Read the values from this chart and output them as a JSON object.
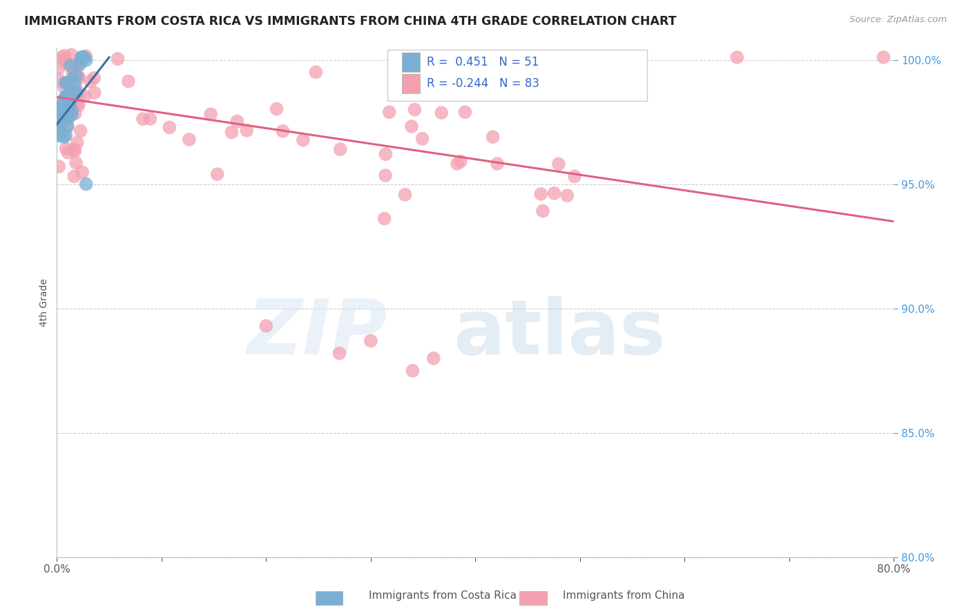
{
  "title": "IMMIGRANTS FROM COSTA RICA VS IMMIGRANTS FROM CHINA 4TH GRADE CORRELATION CHART",
  "source": "Source: ZipAtlas.com",
  "ylabel": "4th Grade",
  "x_min": 0.0,
  "x_max": 0.8,
  "y_min": 0.8,
  "y_max": 1.005,
  "x_ticks": [
    0.0,
    0.1,
    0.2,
    0.3,
    0.4,
    0.5,
    0.6,
    0.7,
    0.8
  ],
  "y_ticks": [
    0.8,
    0.85,
    0.9,
    0.95,
    1.0
  ],
  "y_tick_labels": [
    "80.0%",
    "85.0%",
    "90.0%",
    "95.0%",
    "100.0%"
  ],
  "legend_blue_label": "Immigrants from Costa Rica",
  "legend_pink_label": "Immigrants from China",
  "R_blue": 0.451,
  "N_blue": 51,
  "R_pink": -0.244,
  "N_pink": 83,
  "blue_color": "#7BAFD4",
  "pink_color": "#F4A0B0",
  "blue_line_color": "#3B6EA5",
  "pink_line_color": "#E06080",
  "blue_line_x": [
    0.0,
    0.05
  ],
  "blue_line_y": [
    0.974,
    1.001
  ],
  "pink_line_x": [
    0.0,
    0.8
  ],
  "pink_line_y": [
    0.985,
    0.935
  ]
}
